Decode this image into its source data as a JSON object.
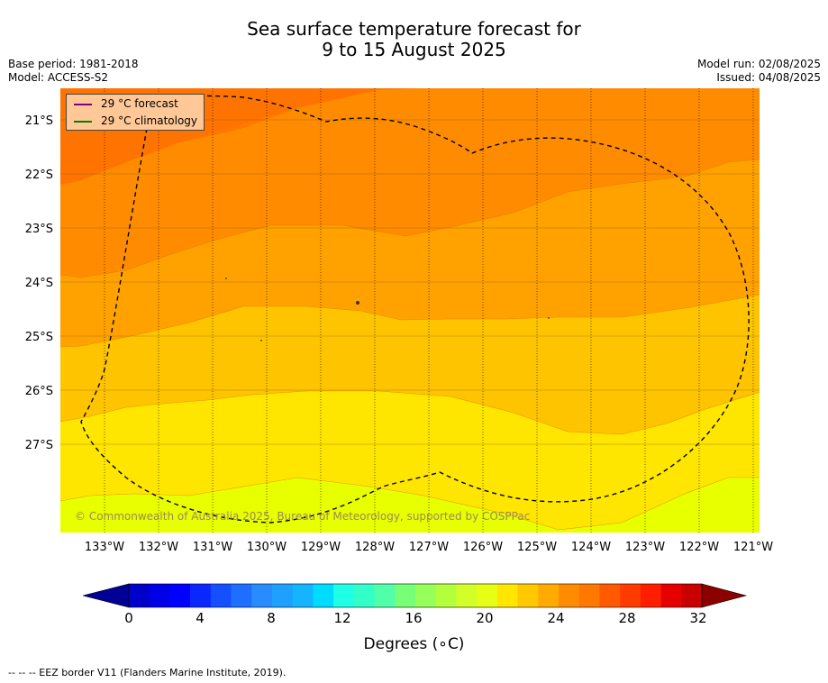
{
  "title": {
    "line1": "Sea surface temperature forecast for",
    "line2": "9 to 15 August 2025"
  },
  "info": {
    "base_period": "Base period: 1981-2018",
    "model": "Model: ACCESS-S2",
    "model_run": "Model run: 02/08/2025",
    "issued": "Issued: 04/08/2025"
  },
  "legend": {
    "forecast": "29 °C  forecast",
    "forecast_color": "#800080",
    "climatology": "29 °C  climatology",
    "climatology_color": "#008000"
  },
  "copyright": "© Commonwealth of Australia 2025, Bureau of Meteorology, supported by COSPPac",
  "axes": {
    "lat_labels": [
      "21°S",
      "22°S",
      "23°S",
      "24°S",
      "25°S",
      "26°S",
      "27°S"
    ],
    "lon_labels": [
      "133°W",
      "132°W",
      "131°W",
      "130°W",
      "129°W",
      "128°W",
      "127°W",
      "126°W",
      "125°W",
      "124°W",
      "123°W",
      "122°W",
      "121°W"
    ]
  },
  "colorbar": {
    "ticks": [
      "0",
      "4",
      "8",
      "12",
      "16",
      "20",
      "24",
      "28",
      "32"
    ],
    "unit_label": "Degrees (∘C)",
    "colors": [
      "#000096",
      "#0000c8",
      "#0000e6",
      "#0000ff",
      "#0a28ff",
      "#1450ff",
      "#1e6eff",
      "#288cff",
      "#1ea0ff",
      "#14b4ff",
      "#00dcff",
      "#1effe6",
      "#32ffc8",
      "#50ffaa",
      "#78ff78",
      "#96ff5a",
      "#b4ff3c",
      "#d2ff28",
      "#e6ff14",
      "#ffe600",
      "#ffc800",
      "#ffaa00",
      "#ff8c00",
      "#ff7800",
      "#ff5a00",
      "#ff3c00",
      "#ff1e00",
      "#e60000",
      "#c80000",
      "#8c0000"
    ]
  },
  "footnote": "--  --  -- EEZ border V11 (Flanders Marine Institute, 2019)."
}
